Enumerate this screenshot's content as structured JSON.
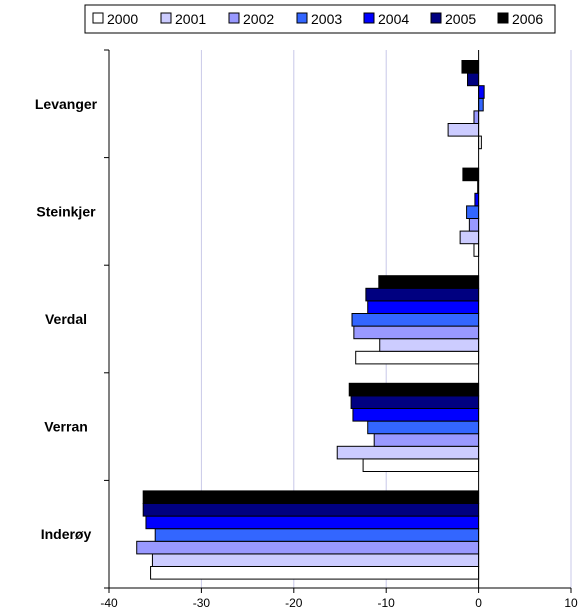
{
  "chart_data": {
    "type": "bar",
    "orientation": "horizontal",
    "categories": [
      "Levanger",
      "Steinkjer",
      "Verdal",
      "Verran",
      "Inderøy"
    ],
    "series": [
      {
        "name": "2000",
        "color": "#ffffff",
        "values": [
          0.3,
          -0.5,
          -13.3,
          -12.5,
          -35.5
        ]
      },
      {
        "name": "2001",
        "color": "#ccccff",
        "values": [
          -3.3,
          -2.0,
          -10.7,
          -15.3,
          -35.3
        ]
      },
      {
        "name": "2002",
        "color": "#9999ff",
        "values": [
          -0.5,
          -1.0,
          -13.5,
          -11.3,
          -37.0
        ]
      },
      {
        "name": "2003",
        "color": "#3366ff",
        "values": [
          0.5,
          -1.3,
          -13.7,
          -12.0,
          -35.0
        ]
      },
      {
        "name": "2004",
        "color": "#0000ff",
        "values": [
          0.6,
          -0.4,
          -12.0,
          -13.6,
          -36.0
        ]
      },
      {
        "name": "2005",
        "color": "#000080",
        "values": [
          -1.2,
          -0.1,
          -12.2,
          -13.8,
          -36.3
        ]
      },
      {
        "name": "2006",
        "color": "#000000",
        "values": [
          -1.8,
          -1.7,
          -10.8,
          -14.0,
          -36.3
        ]
      }
    ],
    "xlim": [
      -40,
      10
    ],
    "xticks": [
      "-40",
      "-30",
      "-20",
      "-10",
      "0",
      "10"
    ],
    "tick_values": [
      -40,
      -30,
      -20,
      -10,
      0,
      10
    ],
    "grid": true,
    "legend_position": "top"
  }
}
